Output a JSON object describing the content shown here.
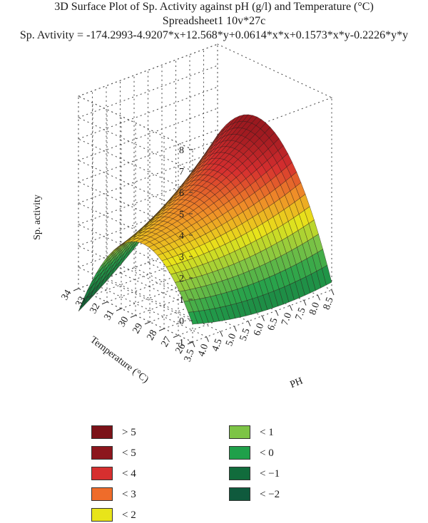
{
  "title": {
    "line1": "3D Surface Plot of Sp. Activity against pH (g/l) and Temperature (°C)",
    "line2": "Spreadsheet1 10v*27c",
    "line3": "Sp. Avtivity = -174.2993-4.9207*x+12.568*y+0.0614*x*x+0.1573*x*y-0.2226*y*y"
  },
  "chart_data": {
    "type": "surface3d",
    "title": "3D Surface Plot of Sp. Activity against pH (g/l) and Temperature (°C)",
    "subtitle": "Spreadsheet1 10v*27c",
    "equation": "Sp. Avtivity = -174.2993-4.9207*x+12.568*y+0.0614*x*x+0.1573*x*y-0.2226*y*y",
    "zlabel": "Sp. activity",
    "ylabel": "Temperature (°C)",
    "xlabel": "PH",
    "x_ticks": [
      "3.5",
      "4.0",
      "4.5",
      "5.0",
      "5.5",
      "6.0",
      "6.5",
      "7.0",
      "7.5",
      "8.0",
      "8.5"
    ],
    "x_range": [
      3.5,
      8.5
    ],
    "y_ticks": [
      "26",
      "27",
      "28",
      "29",
      "30",
      "31",
      "32",
      "33",
      "34"
    ],
    "y_range": [
      26,
      34
    ],
    "z_ticks": [
      "-1",
      "0",
      "1",
      "2",
      "3",
      "4",
      "5",
      "6",
      "7",
      "8"
    ],
    "z_range": [
      -1,
      8
    ],
    "coefficients": {
      "c0": -174.2993,
      "a": -4.9207,
      "b": 12.568,
      "c": 0.0614,
      "d": 0.1573,
      "e": -0.2226
    },
    "surface_grid": {
      "x_steps": 26,
      "y_steps": 26
    },
    "legend": [
      {
        "label": "> 5",
        "color": "#7b1218"
      },
      {
        "label": "< 5",
        "color": "#8c161d"
      },
      {
        "label": "< 4",
        "color": "#d62f2f"
      },
      {
        "label": "< 3",
        "color": "#ef6c2a"
      },
      {
        "label": "< 2",
        "color": "#e8e41a"
      },
      {
        "label": "< 1",
        "color": "#7dc446"
      },
      {
        "label": "< 0",
        "color": "#1fa04a"
      },
      {
        "label": "< −1",
        "color": "#116c3c"
      },
      {
        "label": "< −2",
        "color": "#0f5a3d"
      }
    ],
    "grid": true
  }
}
